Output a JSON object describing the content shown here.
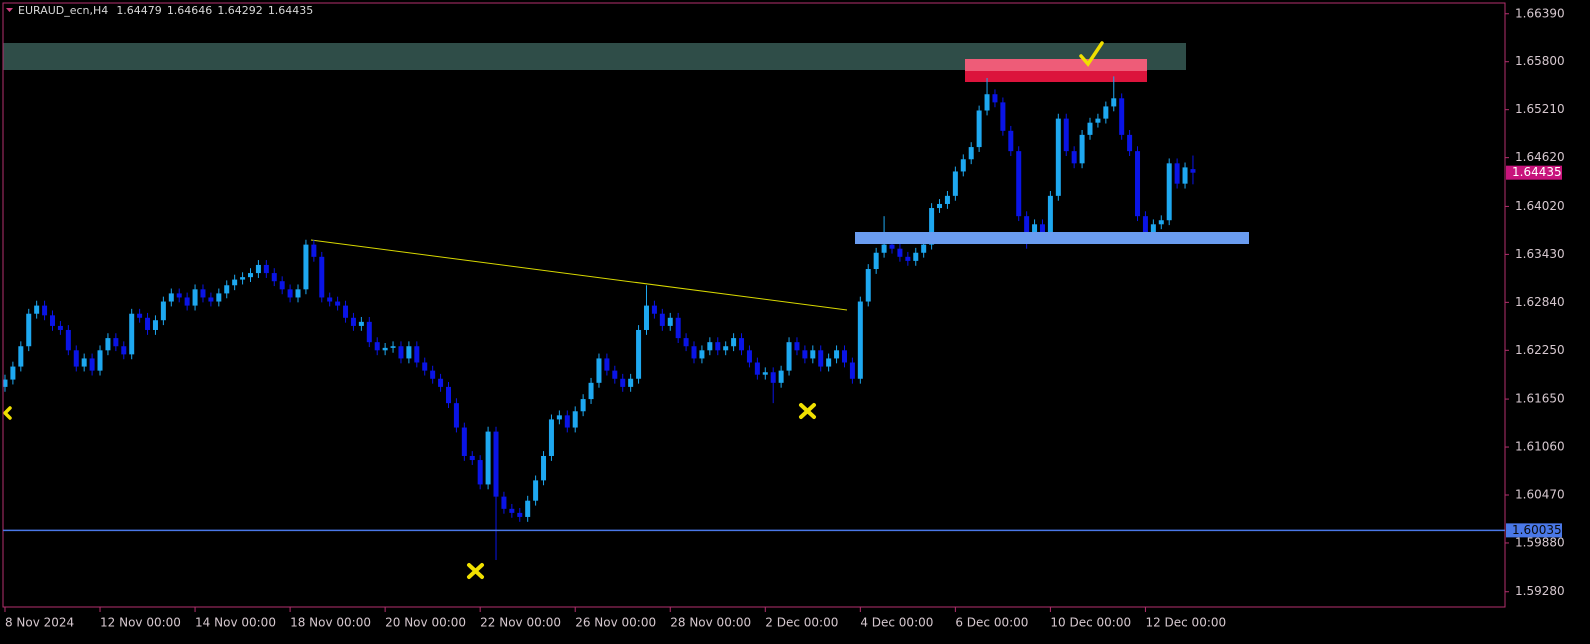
{
  "chart_data": {
    "type": "candlestick",
    "title": "EURAUD_ecn,H4",
    "header_ohlc": [
      1.64479,
      1.64646,
      1.64292,
      1.64435
    ],
    "up_color": "#1ea8f0",
    "down_color": "#0a14e6",
    "ylim": [
      1.5908,
      1.6651
    ],
    "xlim": [
      -0.25,
      189.4
    ],
    "yticks": [
      {
        "value": 1.6639,
        "label": "1.66390"
      },
      {
        "value": 1.658,
        "label": "1.65800"
      },
      {
        "value": 1.6521,
        "label": "1.65210"
      },
      {
        "value": 1.6462,
        "label": "1.64620"
      },
      {
        "value": 1.6402,
        "label": "1.64020"
      },
      {
        "value": 1.6343,
        "label": "1.63430"
      },
      {
        "value": 1.6284,
        "label": "1.62840"
      },
      {
        "value": 1.6225,
        "label": "1.62250"
      },
      {
        "value": 1.6165,
        "label": "1.61650"
      },
      {
        "value": 1.6106,
        "label": "1.61060"
      },
      {
        "value": 1.6047,
        "label": "1.60470"
      },
      {
        "value": 1.5988,
        "label": "1.59880"
      },
      {
        "value": 1.5928,
        "label": "1.59280"
      }
    ],
    "xticks": [
      {
        "value": 0,
        "label": "8 Nov 2024"
      },
      {
        "value": 12,
        "label": "12 Nov 00:00"
      },
      {
        "value": 24,
        "label": "14 Nov 00:00"
      },
      {
        "value": 36,
        "label": "18 Nov 00:00"
      },
      {
        "value": 48,
        "label": "20 Nov 00:00"
      },
      {
        "value": 60,
        "label": "22 Nov 00:00"
      },
      {
        "value": 72,
        "label": "26 Nov 00:00"
      },
      {
        "value": 84,
        "label": "28 Nov 00:00"
      },
      {
        "value": 96,
        "label": "2 Dec 00:00"
      },
      {
        "value": 108,
        "label": "4 Dec 00:00"
      },
      {
        "value": 120,
        "label": "6 Dec 00:00"
      },
      {
        "value": 132,
        "label": "10 Dec 00:00"
      },
      {
        "value": 144,
        "label": "12 Dec 00:00"
      }
    ],
    "current_price": 1.64435,
    "current_price_color": "#c8147c",
    "hline": 1.60035,
    "hline_color": "#4a78e8",
    "open": [
      1.618,
      1.6189,
      1.6205,
      1.623,
      1.627,
      1.628,
      1.6268,
      1.6255,
      1.625,
      1.6225,
      1.6205,
      1.6215,
      1.62,
      1.6225,
      1.624,
      1.623,
      1.622,
      1.627,
      1.6265,
      1.625,
      1.6262,
      1.6285,
      1.6295,
      1.629,
      1.628,
      1.63,
      1.629,
      1.6285,
      1.6295,
      1.6305,
      1.6312,
      1.6315,
      1.632,
      1.633,
      1.632,
      1.631,
      1.63,
      1.629,
      1.63,
      1.6355,
      1.634,
      1.629,
      1.6285,
      1.628,
      1.6265,
      1.6255,
      1.626,
      1.6235,
      1.6225,
      1.6228,
      1.623,
      1.6215,
      1.623,
      1.621,
      1.62,
      1.619,
      1.618,
      1.616,
      1.613,
      1.6095,
      1.609,
      1.606,
      1.6125,
      1.6045,
      1.603,
      1.6025,
      1.602,
      1.604,
      1.6065,
      1.6095,
      1.614,
      1.6145,
      1.613,
      1.615,
      1.6165,
      1.6185,
      1.6215,
      1.62,
      1.619,
      1.618,
      1.619,
      1.625,
      1.628,
      1.627,
      1.6255,
      1.6265,
      1.624,
      1.623,
      1.6215,
      1.6225,
      1.6235,
      1.6225,
      1.623,
      1.624,
      1.6225,
      1.621,
      1.6195,
      1.6198,
      1.6185,
      1.62,
      1.6235,
      1.6225,
      1.6215,
      1.6225,
      1.6205,
      1.6215,
      1.6225,
      1.621,
      1.619,
      1.6285,
      1.6325,
      1.6345,
      1.6355,
      1.635,
      1.634,
      1.6335,
      1.6345,
      1.6355,
      1.64,
      1.6405,
      1.6415,
      1.6445,
      1.646,
      1.6475,
      1.652,
      1.654,
      1.653,
      1.6495,
      1.647,
      1.639,
      1.6365,
      1.638,
      1.637,
      1.6415,
      1.651,
      1.647,
      1.6455,
      1.649,
      1.6505,
      1.651,
      1.6525,
      1.6535,
      1.649,
      1.647,
      1.639,
      1.637,
      1.638,
      1.6385,
      1.6455,
      1.643,
      1.64479
    ],
    "high": [
      1.6195,
      1.6211,
      1.6236,
      1.6276,
      1.6286,
      1.6286,
      1.6274,
      1.6261,
      1.6256,
      1.6231,
      1.6221,
      1.6221,
      1.6231,
      1.6246,
      1.6246,
      1.6236,
      1.6276,
      1.6276,
      1.6271,
      1.6268,
      1.6291,
      1.6301,
      1.6301,
      1.6296,
      1.6306,
      1.6306,
      1.6296,
      1.6301,
      1.6311,
      1.6318,
      1.6321,
      1.6326,
      1.6336,
      1.6336,
      1.6326,
      1.6316,
      1.6306,
      1.6306,
      1.6361,
      1.6361,
      1.6346,
      1.6296,
      1.6291,
      1.6286,
      1.6271,
      1.6266,
      1.6266,
      1.6241,
      1.6234,
      1.6236,
      1.6236,
      1.6236,
      1.6236,
      1.6216,
      1.6206,
      1.6196,
      1.6186,
      1.6166,
      1.6136,
      1.6101,
      1.6096,
      1.6131,
      1.6131,
      1.6051,
      1.6036,
      1.6031,
      1.6046,
      1.6071,
      1.6101,
      1.6146,
      1.6151,
      1.6151,
      1.6156,
      1.6171,
      1.6191,
      1.6221,
      1.6221,
      1.6206,
      1.6196,
      1.6196,
      1.6256,
      1.6305,
      1.6286,
      1.6276,
      1.6271,
      1.6271,
      1.6246,
      1.6236,
      1.6231,
      1.6241,
      1.6241,
      1.6236,
      1.6246,
      1.6246,
      1.6231,
      1.6216,
      1.6204,
      1.6204,
      1.6206,
      1.6241,
      1.6241,
      1.6231,
      1.6231,
      1.6231,
      1.6221,
      1.6231,
      1.6231,
      1.6216,
      1.6291,
      1.6331,
      1.6351,
      1.639,
      1.6361,
      1.6356,
      1.6346,
      1.6351,
      1.6361,
      1.6406,
      1.6411,
      1.6421,
      1.6451,
      1.6466,
      1.6481,
      1.6526,
      1.656,
      1.6546,
      1.6536,
      1.6501,
      1.6476,
      1.6396,
      1.6386,
      1.6386,
      1.6421,
      1.6516,
      1.6516,
      1.6476,
      1.6496,
      1.6511,
      1.6516,
      1.6531,
      1.6562,
      1.6541,
      1.6496,
      1.6476,
      1.6396,
      1.6386,
      1.6391,
      1.6461,
      1.6461,
      1.6456,
      1.64646
    ],
    "low": [
      1.6174,
      1.6183,
      1.6199,
      1.6224,
      1.6264,
      1.6262,
      1.6249,
      1.6244,
      1.6219,
      1.6199,
      1.6199,
      1.6194,
      1.6194,
      1.6219,
      1.6224,
      1.6214,
      1.6214,
      1.6259,
      1.6244,
      1.6244,
      1.6256,
      1.6279,
      1.6284,
      1.6274,
      1.6274,
      1.6284,
      1.6279,
      1.6279,
      1.6289,
      1.6299,
      1.6306,
      1.6309,
      1.6314,
      1.6314,
      1.6304,
      1.6294,
      1.6284,
      1.6284,
      1.6294,
      1.6334,
      1.6284,
      1.6279,
      1.6274,
      1.6259,
      1.6249,
      1.6249,
      1.6229,
      1.6219,
      1.6219,
      1.6222,
      1.6209,
      1.6209,
      1.6204,
      1.6194,
      1.6184,
      1.6174,
      1.6154,
      1.6124,
      1.6089,
      1.6084,
      1.6054,
      1.6054,
      1.5967,
      1.6024,
      1.6019,
      1.6014,
      1.6014,
      1.6034,
      1.6059,
      1.6089,
      1.6134,
      1.6124,
      1.6124,
      1.6144,
      1.6159,
      1.6179,
      1.6194,
      1.6184,
      1.6174,
      1.6174,
      1.6184,
      1.6244,
      1.6264,
      1.6249,
      1.6249,
      1.6234,
      1.6224,
      1.6209,
      1.6209,
      1.6219,
      1.6219,
      1.6219,
      1.6224,
      1.6219,
      1.6204,
      1.6189,
      1.6189,
      1.616,
      1.6179,
      1.6194,
      1.6219,
      1.6209,
      1.6209,
      1.6199,
      1.6199,
      1.6209,
      1.6204,
      1.6184,
      1.6184,
      1.6279,
      1.6319,
      1.6339,
      1.6344,
      1.6334,
      1.6329,
      1.6329,
      1.6339,
      1.6349,
      1.6394,
      1.6399,
      1.6409,
      1.6439,
      1.6454,
      1.6469,
      1.6514,
      1.6524,
      1.6489,
      1.6464,
      1.6384,
      1.635,
      1.6359,
      1.6364,
      1.6364,
      1.6409,
      1.6464,
      1.6449,
      1.6449,
      1.6484,
      1.6499,
      1.6504,
      1.6519,
      1.6484,
      1.6464,
      1.6384,
      1.636,
      1.6364,
      1.6374,
      1.6379,
      1.6424,
      1.6424,
      1.64292
    ],
    "close": [
      1.6189,
      1.6205,
      1.623,
      1.627,
      1.628,
      1.6268,
      1.6255,
      1.625,
      1.6225,
      1.6205,
      1.6215,
      1.62,
      1.6225,
      1.624,
      1.623,
      1.622,
      1.627,
      1.6265,
      1.625,
      1.6262,
      1.6285,
      1.6295,
      1.629,
      1.628,
      1.63,
      1.629,
      1.6285,
      1.6295,
      1.6305,
      1.6312,
      1.6315,
      1.632,
      1.633,
      1.632,
      1.631,
      1.63,
      1.629,
      1.63,
      1.6355,
      1.634,
      1.629,
      1.6285,
      1.628,
      1.6265,
      1.6255,
      1.626,
      1.6235,
      1.6225,
      1.6228,
      1.623,
      1.6215,
      1.623,
      1.621,
      1.62,
      1.619,
      1.618,
      1.616,
      1.613,
      1.6095,
      1.609,
      1.606,
      1.6125,
      1.6045,
      1.603,
      1.6025,
      1.602,
      1.604,
      1.6065,
      1.6095,
      1.614,
      1.6145,
      1.613,
      1.615,
      1.6165,
      1.6185,
      1.6215,
      1.62,
      1.619,
      1.618,
      1.619,
      1.625,
      1.628,
      1.627,
      1.6255,
      1.6265,
      1.624,
      1.623,
      1.6215,
      1.6225,
      1.6235,
      1.6225,
      1.623,
      1.624,
      1.6225,
      1.621,
      1.6195,
      1.6198,
      1.6185,
      1.62,
      1.6235,
      1.6225,
      1.6215,
      1.6225,
      1.6205,
      1.6215,
      1.6225,
      1.621,
      1.619,
      1.6285,
      1.6325,
      1.6345,
      1.6355,
      1.635,
      1.634,
      1.6335,
      1.6345,
      1.6355,
      1.64,
      1.6405,
      1.6415,
      1.6445,
      1.646,
      1.6475,
      1.652,
      1.654,
      1.653,
      1.6495,
      1.647,
      1.639,
      1.6365,
      1.638,
      1.637,
      1.6415,
      1.651,
      1.647,
      1.6455,
      1.649,
      1.6505,
      1.651,
      1.6525,
      1.6535,
      1.649,
      1.647,
      1.639,
      1.637,
      1.638,
      1.6385,
      1.6455,
      1.643,
      1.645,
      1.64435
    ]
  }
}
